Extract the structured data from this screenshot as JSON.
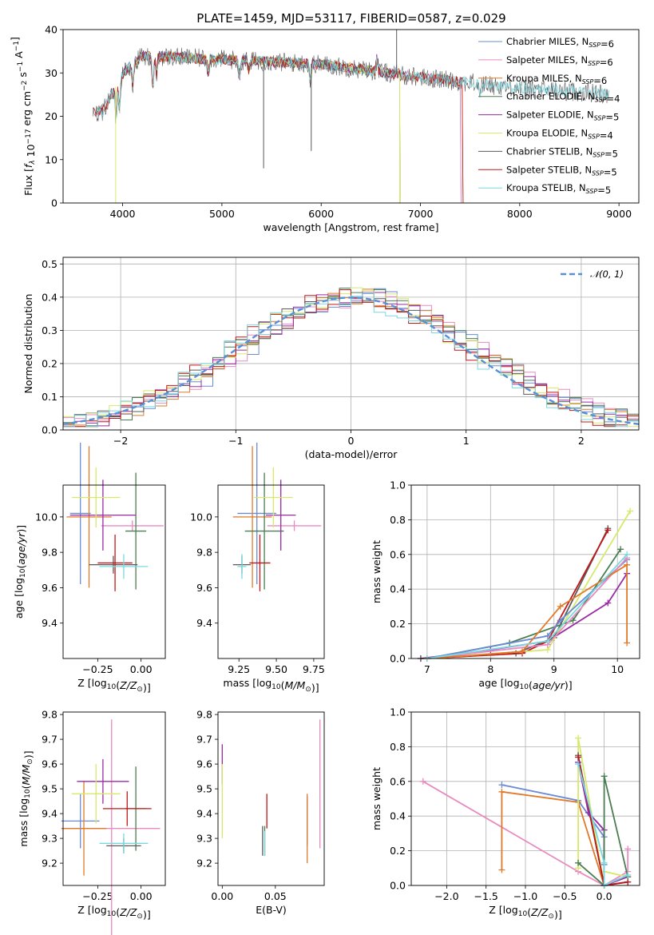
{
  "title": "PLATE=1459, MJD=53117, FIBERID=0587, z=0.029",
  "colors": {
    "chabrier_miles": "#6a8bd6",
    "salpeter_miles": "#e88ac0",
    "kroupa_miles": "#e07a2a",
    "chabrier_elodie": "#4a7d52",
    "salpeter_elodie": "#9a2aa6",
    "kroupa_elodie": "#d8e86a",
    "chabrier_stelib": "#5a5a5a",
    "salpeter_stelib": "#c01818",
    "kroupa_stelib": "#7ad8e0",
    "normal": "#5a8fd6"
  },
  "chart_data": [
    {
      "id": "spectrum",
      "type": "line",
      "xlabel": "wavelength [Angstrom, rest frame]",
      "ylabel": "Flux [f_λ 10^-17 erg cm^-2 s^-1 A^-1]",
      "xlim": [
        3400,
        9200
      ],
      "ylim": [
        0,
        40
      ],
      "xticks": [
        4000,
        5000,
        6000,
        7000,
        8000,
        9000
      ],
      "yticks": [
        0,
        10,
        20,
        30,
        40
      ],
      "grid": false,
      "legend": "top-right",
      "series": [
        {
          "name": "Chabrier MILES, N_SSP=6",
          "color": "#6a8bd6",
          "xrange": [
            3740,
            7400
          ]
        },
        {
          "name": "Salpeter MILES, N_SSP=6",
          "color": "#e88ac0",
          "xrange": [
            3740,
            7400
          ]
        },
        {
          "name": "Kroupa MILES, N_SSP=6",
          "color": "#e07a2a",
          "xrange": [
            3740,
            7420
          ]
        },
        {
          "name": "Chabrier ELODIE, N_SSP=4",
          "color": "#4a7d52",
          "xrange": [
            3900,
            6790
          ]
        },
        {
          "name": "Salpeter ELODIE, N_SSP=5",
          "color": "#9a2aa6",
          "xrange": [
            3900,
            6790
          ]
        },
        {
          "name": "Kroupa ELODIE, N_SSP=4",
          "color": "#d8e86a",
          "xrange": [
            3900,
            6790
          ]
        },
        {
          "name": "Chabrier STELIB, N_SSP=5",
          "color": "#5a5a5a",
          "xrange": [
            3700,
            8900
          ]
        },
        {
          "name": "Salpeter STELIB, N_SSP=5",
          "color": "#c01818",
          "xrange": [
            3700,
            7420
          ]
        },
        {
          "name": "Kroupa STELIB, N_SSP=5",
          "color": "#7ad8e0",
          "xrange": [
            3740,
            8900
          ]
        }
      ]
    },
    {
      "id": "residuals",
      "type": "line",
      "xlabel": "(data-model)/error",
      "ylabel": "Normed distribution",
      "xlim": [
        -2.5,
        2.5
      ],
      "ylim": [
        0,
        0.52
      ],
      "xticks": [
        -2,
        -1,
        0,
        1,
        2
      ],
      "yticks": [
        0.0,
        0.1,
        0.2,
        0.3,
        0.4,
        0.5
      ],
      "grid": true,
      "legend": "top-right",
      "normal_label": "𝒩(0, 1)",
      "bin_width": 0.1
    },
    {
      "id": "age_vs_Z",
      "type": "scatter",
      "xlabel": "Z [log10(Z/Z☉)]",
      "ylabel": "age  [log10(age/yr)]",
      "xlim": [
        -0.45,
        0.14
      ],
      "ylim": [
        9.2,
        10.18
      ],
      "xticks": [
        -0.25,
        0.0
      ],
      "yticks": [
        9.4,
        9.6,
        9.8,
        10.0
      ],
      "points": [
        {
          "color": "#6a8bd6",
          "x": -0.35,
          "xerr": 0.06,
          "y": 10.02,
          "yerr": 0.4
        },
        {
          "color": "#e88ac0",
          "x": -0.05,
          "xerr": 0.18,
          "y": 9.95,
          "yerr": 0.03
        },
        {
          "color": "#e07a2a",
          "x": -0.3,
          "xerr": 0.13,
          "y": 10.0,
          "yerr": 0.4
        },
        {
          "color": "#4a7d52",
          "x": -0.03,
          "xerr": 0.06,
          "y": 9.92,
          "yerr": 0.33
        },
        {
          "color": "#9a2aa6",
          "x": -0.22,
          "xerr": 0.19,
          "y": 10.01,
          "yerr": 0.2
        },
        {
          "color": "#d8e86a",
          "x": -0.26,
          "xerr": 0.14,
          "y": 10.11,
          "yerr": 0.17
        },
        {
          "color": "#5a5a5a",
          "x": -0.16,
          "xerr": 0.14,
          "y": 9.73,
          "yerr": 0.05
        },
        {
          "color": "#c01818",
          "x": -0.15,
          "xerr": 0.1,
          "y": 9.74,
          "yerr": 0.16
        },
        {
          "color": "#7ad8e0",
          "x": -0.1,
          "xerr": 0.14,
          "y": 9.72,
          "yerr": 0.07
        }
      ]
    },
    {
      "id": "age_vs_mass",
      "type": "scatter",
      "xlabel": "mass [log10(M/M☉)]",
      "ylabel": "",
      "xlim": [
        9.11,
        9.82
      ],
      "ylim": [
        9.2,
        10.18
      ],
      "xticks": [
        9.25,
        9.5,
        9.75
      ],
      "yticks": [
        9.4,
        9.6,
        9.8,
        10.0
      ],
      "points": [
        {
          "color": "#6a8bd6",
          "x": 9.37,
          "xerr": 0.13,
          "y": 10.02,
          "yerr": 0.4
        },
        {
          "color": "#e88ac0",
          "x": 9.62,
          "xerr": 0.18,
          "y": 9.95,
          "yerr": 0.03
        },
        {
          "color": "#e07a2a",
          "x": 9.34,
          "xerr": 0.13,
          "y": 10.0,
          "yerr": 0.4
        },
        {
          "color": "#4a7d52",
          "x": 9.42,
          "xerr": 0.13,
          "y": 9.92,
          "yerr": 0.33
        },
        {
          "color": "#9a2aa6",
          "x": 9.53,
          "xerr": 0.1,
          "y": 10.01,
          "yerr": 0.2
        },
        {
          "color": "#d8e86a",
          "x": 9.48,
          "xerr": 0.13,
          "y": 10.11,
          "yerr": 0.17
        },
        {
          "color": "#5a5a5a",
          "x": 9.27,
          "xerr": 0.06,
          "y": 9.73,
          "yerr": 0.05
        },
        {
          "color": "#c01818",
          "x": 9.39,
          "xerr": 0.07,
          "y": 9.74,
          "yerr": 0.16
        },
        {
          "color": "#7ad8e0",
          "x": 9.27,
          "xerr": 0.03,
          "y": 9.72,
          "yerr": 0.07
        }
      ]
    },
    {
      "id": "massweight_vs_age",
      "type": "line",
      "xlabel": "age  [log10(age/yr)]",
      "ylabel": "mass weight",
      "xlim": [
        6.75,
        10.35
      ],
      "ylim": [
        0,
        1.0
      ],
      "xticks": [
        7,
        8,
        9,
        10
      ],
      "yticks": [
        0.0,
        0.2,
        0.4,
        0.6,
        0.8,
        1.0
      ],
      "grid": true,
      "series": [
        {
          "color": "#9a2aa6",
          "x": [
            6.9,
            8.0,
            8.9,
            9.85,
            10.15
          ],
          "y": [
            0.0,
            0.05,
            0.1,
            0.32,
            0.49
          ]
        },
        {
          "color": "#5a5a5a",
          "x": [
            6.9,
            8.4,
            9.0,
            9.85
          ],
          "y": [
            0.0,
            0.03,
            0.12,
            0.75
          ]
        },
        {
          "color": "#c01818",
          "x": [
            7.0,
            8.5,
            8.9,
            9.85
          ],
          "y": [
            0.0,
            0.03,
            0.1,
            0.74
          ]
        },
        {
          "color": "#4a7d52",
          "x": [
            7.0,
            8.3,
            9.3,
            10.05
          ],
          "y": [
            0.0,
            0.09,
            0.22,
            0.63
          ]
        },
        {
          "color": "#d8e86a",
          "x": [
            7.0,
            8.9,
            10.2
          ],
          "y": [
            0.0,
            0.05,
            0.85
          ]
        },
        {
          "color": "#6a8bd6",
          "x": [
            7.0,
            8.9,
            9.1,
            10.15
          ],
          "y": [
            0.0,
            0.13,
            0.22,
            0.57
          ]
        },
        {
          "color": "#e88ac0",
          "x": [
            7.0,
            8.9,
            10.15
          ],
          "y": [
            0.0,
            0.08,
            0.58
          ]
        },
        {
          "color": "#e07a2a",
          "x": [
            7.0,
            8.5,
            9.1,
            10.15,
            10.15
          ],
          "y": [
            0.0,
            0.04,
            0.3,
            0.54,
            0.09
          ]
        },
        {
          "color": "#7ad8e0",
          "x": [
            7.0,
            8.9,
            10.15
          ],
          "y": [
            0.0,
            0.1,
            0.6
          ]
        }
      ]
    },
    {
      "id": "mass_vs_Z",
      "type": "scatter",
      "xlabel": "Z [log10(Z/Z☉)]",
      "ylabel": "mass [log10(M/M☉)]",
      "xlim": [
        -0.45,
        0.14
      ],
      "ylim": [
        9.11,
        9.81
      ],
      "xticks": [
        -0.25,
        0.0
      ],
      "yticks": [
        9.2,
        9.3,
        9.4,
        9.5,
        9.6,
        9.7,
        9.8
      ],
      "points": [
        {
          "color": "#6a8bd6",
          "x": -0.35,
          "xerr": 0.11,
          "y": 9.37,
          "yerr": 0.11
        },
        {
          "color": "#e88ac0",
          "x": -0.17,
          "xerr": 0.28,
          "y": 9.34,
          "yerr": 0.44
        },
        {
          "color": "#e07a2a",
          "x": -0.33,
          "xerr": 0.13,
          "y": 9.34,
          "yerr": 0.19
        },
        {
          "color": "#4a7d52",
          "x": -0.03,
          "xerr": 0.06,
          "y": 9.42,
          "yerr": 0.17
        },
        {
          "color": "#9a2aa6",
          "x": -0.22,
          "xerr": 0.15,
          "y": 9.53,
          "yerr": 0.09
        },
        {
          "color": "#d8e86a",
          "x": -0.26,
          "xerr": 0.14,
          "y": 9.48,
          "yerr": 0.12
        },
        {
          "color": "#5a5a5a",
          "x": -0.1,
          "xerr": 0.1,
          "y": 9.27,
          "yerr": 0.03
        },
        {
          "color": "#c01818",
          "x": -0.08,
          "xerr": 0.14,
          "y": 9.42,
          "yerr": 0.07
        },
        {
          "color": "#7ad8e0",
          "x": -0.1,
          "xerr": 0.14,
          "y": 9.28,
          "yerr": 0.04
        }
      ]
    },
    {
      "id": "mass_vs_ebv",
      "type": "scatter",
      "xlabel": "E(B-V)",
      "ylabel": "",
      "xlim": [
        -0.004,
        0.096
      ],
      "ylim": [
        9.11,
        9.81
      ],
      "xticks": [
        0.0,
        0.05
      ],
      "yticks": [
        9.2,
        9.3,
        9.4,
        9.5,
        9.6,
        9.7,
        9.8
      ],
      "points": [
        {
          "color": "#6a8bd6",
          "x": 0.08,
          "y": 9.37,
          "yerr": 0.1
        },
        {
          "color": "#e88ac0",
          "x": 0.092,
          "y": 9.52,
          "yerr": 0.26
        },
        {
          "color": "#e07a2a",
          "x": 0.08,
          "y": 9.34,
          "yerr": 0.14
        },
        {
          "color": "#4a7d52",
          "x": 0.04,
          "y": 9.29,
          "yerr": 0.06
        },
        {
          "color": "#9a2aa6",
          "x": 0.0,
          "y": 9.6,
          "yerr": 0.08
        },
        {
          "color": "#d8e86a",
          "x": 0.0,
          "y": 9.45,
          "yerr": 0.15
        },
        {
          "color": "#5a5a5a",
          "x": 0.038,
          "y": 9.29,
          "yerr": 0.06
        },
        {
          "color": "#c01818",
          "x": 0.042,
          "y": 9.41,
          "yerr": 0.07
        },
        {
          "color": "#7ad8e0",
          "x": 0.04,
          "y": 9.28,
          "yerr": 0.05
        }
      ]
    },
    {
      "id": "massweight_vs_Z",
      "type": "line",
      "xlabel": "Z [log10(Z/Z☉)]",
      "ylabel": "mass weight",
      "xlim": [
        -2.45,
        0.45
      ],
      "ylim": [
        0,
        1.0
      ],
      "xticks": [
        -2.0,
        -1.5,
        -1.0,
        -0.5,
        0.0
      ],
      "yticks": [
        0.0,
        0.2,
        0.4,
        0.6,
        0.8,
        1.0
      ],
      "grid": true,
      "series": [
        {
          "color": "#e88ac0",
          "x": [
            -2.3,
            -0.33,
            0.0,
            0.3,
            0.3
          ],
          "y": [
            0.6,
            0.08,
            0.0,
            0.08,
            0.21
          ]
        },
        {
          "color": "#6a8bd6",
          "x": [
            -1.3,
            -0.33,
            0.0,
            0.0
          ],
          "y": [
            0.58,
            0.49,
            0.28,
            0.12
          ]
        },
        {
          "color": "#e07a2a",
          "x": [
            -1.3,
            -1.3,
            -0.33,
            0.0,
            0.3
          ],
          "y": [
            0.09,
            0.54,
            0.48,
            0.0,
            0.05
          ]
        },
        {
          "color": "#d8e86a",
          "x": [
            -0.33,
            -0.33,
            0.0,
            0.0,
            0.3
          ],
          "y": [
            0.1,
            0.85,
            0.0,
            0.08,
            0.05
          ]
        },
        {
          "color": "#5a5a5a",
          "x": [
            -0.33,
            0.0,
            0.3
          ],
          "y": [
            0.75,
            0.0,
            0.02
          ]
        },
        {
          "color": "#c01818",
          "x": [
            -0.33,
            0.0,
            0.3
          ],
          "y": [
            0.74,
            0.0,
            0.02
          ]
        },
        {
          "color": "#9a2aa6",
          "x": [
            -0.33,
            -0.2,
            0.0,
            0.0,
            0.3
          ],
          "y": [
            0.71,
            0.42,
            0.32,
            0.0,
            0.05
          ]
        },
        {
          "color": "#4a7d52",
          "x": [
            -0.33,
            0.0,
            0.0,
            0.3
          ],
          "y": [
            0.13,
            0.0,
            0.63,
            0.05
          ]
        },
        {
          "color": "#7ad8e0",
          "x": [
            -0.33,
            0.0,
            0.0,
            0.3
          ],
          "y": [
            0.7,
            0.13,
            0.0,
            0.06
          ]
        }
      ]
    }
  ]
}
